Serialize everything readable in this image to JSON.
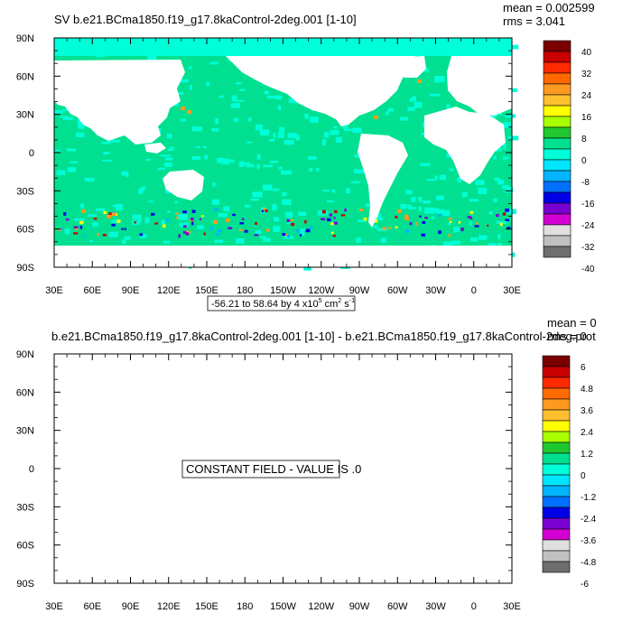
{
  "chart_data": [
    {
      "type": "heatmap",
      "title": "SV b.e21.BCma1850.f19_g17.8kaControl-2deg.001 [1-10]",
      "stats": {
        "mean": "mean = 0.002599",
        "rms": "rms = 3.041"
      },
      "subtitle": "-56.21 to 58.64 by 4 x10",
      "subtitle_exp": "5",
      "subtitle_unit": " cm",
      "subtitle_exp2": "2",
      "subtitle_unit2": " s",
      "subtitle_exp3": "-1",
      "x_ticks": [
        "30E",
        "60E",
        "90E",
        "120E",
        "150E",
        "180",
        "150W",
        "120W",
        "90W",
        "60W",
        "30W",
        "0",
        "30E"
      ],
      "y_ticks": [
        "90N",
        "60N",
        "30N",
        "0",
        "30S",
        "60S",
        "90S"
      ],
      "colorbar_labels": [
        "40",
        "32",
        "24",
        "16",
        "8",
        "0",
        "-8",
        "-16",
        "-24",
        "-32",
        "-40"
      ],
      "colorbar_colors": [
        "#7a0000",
        "#c80000",
        "#ff2a00",
        "#ff6a00",
        "#ff9a20",
        "#ffc030",
        "#ffff00",
        "#a8ff00",
        "#20c830",
        "#00e090",
        "#00ffd8",
        "#00e6ff",
        "#00b4ff",
        "#0070ff",
        "#0000e6",
        "#7a00d2",
        "#d200d2",
        "#e0e0e0",
        "#c0c0c0",
        "#6e6e6e"
      ],
      "ocean_fill": "#00e090",
      "ocean_fill_alt": "#00ffd8"
    },
    {
      "type": "heatmap",
      "title": "b.e21.BCma1850.f19_g17.8kaControl-2deg.001 [1-10] - b.e21.BCma1850.f19_g17.8kaControl-2deg.prot",
      "stats": {
        "mean": "mean = 0",
        "rms": "rms = 0"
      },
      "message": "CONSTANT FIELD - VALUE IS .0",
      "x_ticks": [
        "30E",
        "60E",
        "90E",
        "120E",
        "150E",
        "180",
        "150W",
        "120W",
        "90W",
        "60W",
        "30W",
        "0",
        "30E"
      ],
      "y_ticks": [
        "90N",
        "60N",
        "30N",
        "0",
        "30S",
        "60S",
        "90S"
      ],
      "colorbar_labels": [
        "6",
        "4.8",
        "3.6",
        "2.4",
        "1.2",
        "0",
        "-1.2",
        "-2.4",
        "-3.6",
        "-4.8",
        "-6"
      ],
      "colorbar_colors": [
        "#7a0000",
        "#c80000",
        "#ff2a00",
        "#ff6a00",
        "#ff9a20",
        "#ffc030",
        "#ffff00",
        "#a8ff00",
        "#20c830",
        "#00e090",
        "#00ffd8",
        "#00e6ff",
        "#00b4ff",
        "#0070ff",
        "#0000e6",
        "#7a00d2",
        "#d200d2",
        "#e0e0e0",
        "#c0c0c0",
        "#6e6e6e"
      ]
    }
  ]
}
